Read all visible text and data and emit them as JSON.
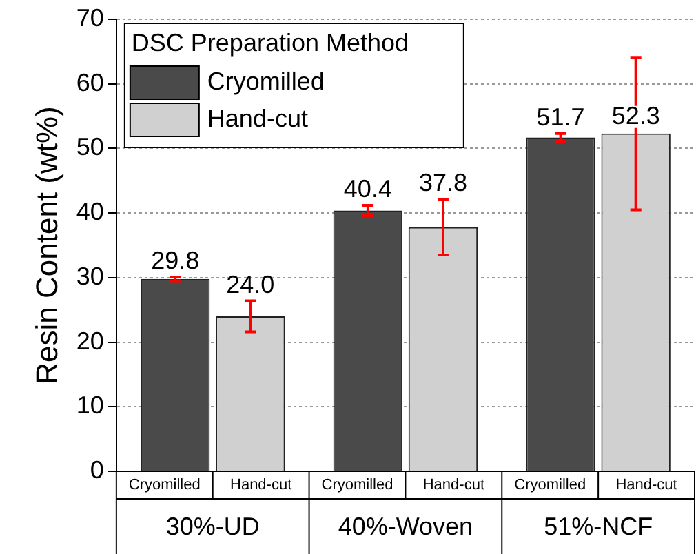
{
  "chart_data": {
    "type": "bar",
    "ylabel": "Resin Content (wt%)",
    "legend_title": "DSC Preparation Method",
    "categories": [
      "30%-UD",
      "40%-Woven",
      "51%-NCF"
    ],
    "series": [
      {
        "name": "Cryomilled",
        "color": "#4a4a4a",
        "values": [
          29.8,
          40.4,
          51.7
        ],
        "errors": [
          0.3,
          0.8,
          0.6
        ],
        "value_labels": [
          "29.8",
          "40.4",
          "51.7"
        ]
      },
      {
        "name": "Hand-cut",
        "color": "#d0d0d0",
        "values": [
          24.0,
          37.8,
          52.3
        ],
        "errors": [
          2.4,
          4.3,
          11.8
        ],
        "value_labels": [
          "24.0",
          "37.8",
          "52.3"
        ]
      }
    ],
    "ylim": [
      0,
      70
    ],
    "yticks": [
      0,
      10,
      20,
      30,
      40,
      50,
      60,
      70
    ],
    "grid": "y",
    "legend": "top left"
  }
}
